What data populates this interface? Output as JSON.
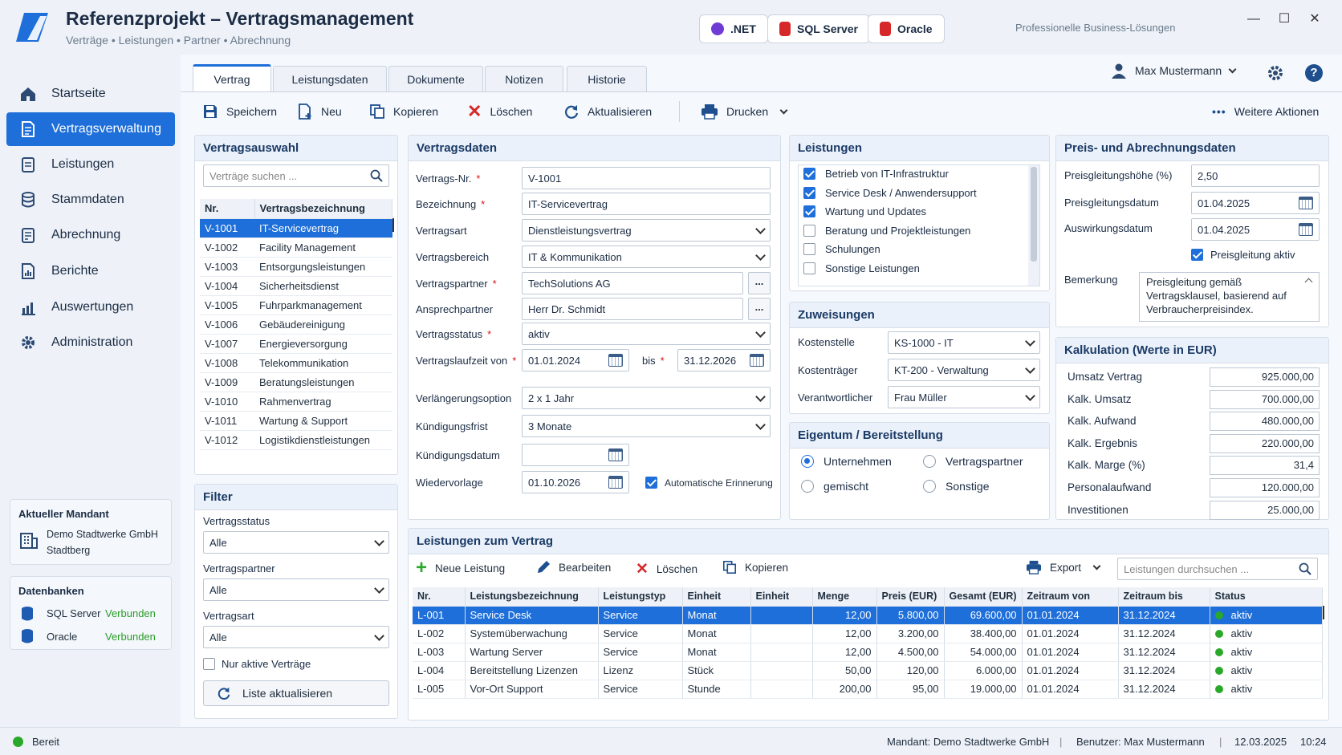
{
  "app": {
    "title": "Referenzprojekt – Vertragsmanagement",
    "subtitle": "Verträge • Leistungen • Partner • Abrechnung",
    "badges": [
      ".NET",
      "SQL Server",
      "Oracle"
    ],
    "tagline": "Professionelle Business-Lösungen",
    "accent": "#1e6fd9"
  },
  "nav": [
    "Startseite",
    "Vertragsverwaltung",
    "Leistungen",
    "Stammdaten",
    "Abrechnung",
    "Berichte",
    "Auswertungen",
    "Administration"
  ],
  "mandant": {
    "heading": "Aktueller Mandant",
    "line1": "Demo Stadtwerke GmbH",
    "line2": "Stadtberg"
  },
  "databases": {
    "heading": "Datenbanken",
    "items": [
      {
        "name": "SQL Server",
        "status": "Verbunden"
      },
      {
        "name": "Oracle",
        "status": "Verbunden"
      }
    ]
  },
  "tabs": [
    "Vertrag",
    "Leistungsdaten",
    "Dokumente",
    "Notizen",
    "Historie"
  ],
  "user": "Max Mustermann",
  "toolbar": {
    "save": "Speichern",
    "new": "Neu",
    "copy": "Kopieren",
    "delete": "Löschen",
    "refresh": "Aktualisieren",
    "print": "Drucken",
    "more": "Weitere Aktionen"
  },
  "vertragsauswahl": {
    "heading": "Vertragsauswahl",
    "search_placeholder": "Verträge suchen ...",
    "col_nr": "Nr.",
    "col_name": "Vertragsbezeichnung",
    "rows": [
      [
        "V-1001",
        "IT-Servicevertrag"
      ],
      [
        "V-1002",
        "Facility Management"
      ],
      [
        "V-1003",
        "Entsorgungsleistungen"
      ],
      [
        "V-1004",
        "Sicherheitsdienst"
      ],
      [
        "V-1005",
        "Fuhrparkmanagement"
      ],
      [
        "V-1006",
        "Gebäudereinigung"
      ],
      [
        "V-1007",
        "Energieversorgung"
      ],
      [
        "V-1008",
        "Telekommunikation"
      ],
      [
        "V-1009",
        "Beratungsleistungen"
      ],
      [
        "V-1010",
        "Rahmenvertrag"
      ],
      [
        "V-1011",
        "Wartung & Support"
      ],
      [
        "V-1012",
        "Logistikdienstleistungen"
      ]
    ]
  },
  "filter": {
    "heading": "Filter",
    "status_label": "Vertragsstatus",
    "status_value": "Alle",
    "partner_label": "Vertragspartner",
    "partner_value": "Alle",
    "art_label": "Vertragsart",
    "art_value": "Alle",
    "only_active": "Nur aktive Verträge",
    "refresh_button": "Liste aktualisieren"
  },
  "vertragsdaten": {
    "heading": "Vertragsdaten",
    "nr_label": "Vertrags-Nr.",
    "nr": "V-1001",
    "bez_label": "Bezeichnung",
    "bez": "IT-Servicevertrag",
    "art_label": "Vertragsart",
    "art": "Dienstleistungsvertrag",
    "bereich_label": "Vertragsbereich",
    "bereich": "IT & Kommunikation",
    "partner_label": "Vertragspartner",
    "partner": "TechSolutions AG",
    "ansprech_label": "Ansprechpartner",
    "ansprech": "Herr Dr. Schmidt",
    "status_label": "Vertragsstatus",
    "status": "aktiv",
    "laufzeit_label": "Vertragslaufzeit von",
    "von": "01.01.2024",
    "bis_label": "bis",
    "bis": "31.12.2026",
    "verl_label": "Verlängerungsoption",
    "verl": "2 x 1 Jahr",
    "kfrist_label": "Kündigungsfrist",
    "kfrist": "3 Monate",
    "kdatum_label": "Kündigungsdatum",
    "kdatum": "",
    "wv_label": "Wiedervorlage",
    "wv": "01.10.2026",
    "erinnerung": "Automatische Erinnerung"
  },
  "leistungen": {
    "heading": "Leistungen",
    "items": [
      {
        "label": "Betrieb von IT-Infrastruktur",
        "checked": true
      },
      {
        "label": "Service Desk / Anwendersupport",
        "checked": true
      },
      {
        "label": "Wartung und Updates",
        "checked": true
      },
      {
        "label": "Beratung und Projektleistungen",
        "checked": false
      },
      {
        "label": "Schulungen",
        "checked": false
      },
      {
        "label": "Sonstige Leistungen",
        "checked": false
      }
    ]
  },
  "zuweisungen": {
    "heading": "Zuweisungen",
    "ks_label": "Kostenstelle",
    "ks": "KS-1000 - IT",
    "kt_label": "Kostenträger",
    "kt": "KT-200 - Verwaltung",
    "ver_label": "Verantwortlicher",
    "ver": "Frau Müller"
  },
  "eigentum": {
    "heading": "Eigentum / Bereitstellung",
    "options": [
      "Unternehmen",
      "Vertragspartner",
      "gemischt",
      "Sonstige"
    ],
    "selected": "Unternehmen"
  },
  "preis": {
    "heading": "Preis- und Abrechnungsdaten",
    "hoehe_label": "Preisgleitungshöhe (%)",
    "hoehe": "2,50",
    "datum_label": "Preisgleitungsdatum",
    "datum": "01.04.2025",
    "auswirkung_label": "Auswirkungsdatum",
    "auswirkung": "01.04.2025",
    "aktiv_label": "Preisgleitung aktiv",
    "bemerkung_label": "Bemerkung",
    "bemerkung": "Preisgleitung gemäß Vertragsklausel, basierend auf Verbraucherpreisindex."
  },
  "kalkulation": {
    "heading": "Kalkulation (Werte in EUR)",
    "rows": [
      [
        "Umsatz Vertrag",
        "925.000,00"
      ],
      [
        "Kalk. Umsatz",
        "700.000,00"
      ],
      [
        "Kalk. Aufwand",
        "480.000,00"
      ],
      [
        "Kalk. Ergebnis",
        "220.000,00"
      ],
      [
        "Kalk. Marge (%)",
        "31,4"
      ],
      [
        "Personalaufwand",
        "120.000,00"
      ],
      [
        "Investitionen",
        "25.000,00"
      ]
    ]
  },
  "lzv": {
    "heading": "Leistungen zum Vertrag",
    "new": "Neue Leistung",
    "edit": "Bearbeiten",
    "delete": "Löschen",
    "copy": "Kopieren",
    "export": "Export",
    "search_placeholder": "Leistungen durchsuchen ...",
    "columns": [
      "Nr.",
      "Leistungsbezeichnung",
      "Leistungstyp",
      "Einheit",
      "Einheit",
      "Menge",
      "Preis (EUR)",
      "Gesamt (EUR)",
      "Zeitraum von",
      "Zeitraum bis",
      "Status"
    ],
    "rows": [
      [
        "L-001",
        "Service Desk",
        "Service",
        "Monat",
        "",
        "12,00",
        "5.800,00",
        "69.600,00",
        "01.01.2024",
        "31.12.2024",
        "aktiv"
      ],
      [
        "L-002",
        "Systemüberwachung",
        "Service",
        "Monat",
        "",
        "12,00",
        "3.200,00",
        "38.400,00",
        "01.01.2024",
        "31.12.2024",
        "aktiv"
      ],
      [
        "L-003",
        "Wartung Server",
        "Service",
        "Monat",
        "",
        "12,00",
        "4.500,00",
        "54.000,00",
        "01.01.2024",
        "31.12.2024",
        "aktiv"
      ],
      [
        "L-004",
        "Bereitstellung Lizenzen",
        "Lizenz",
        "Stück",
        "",
        "50,00",
        "120,00",
        "6.000,00",
        "01.01.2024",
        "31.12.2024",
        "aktiv"
      ],
      [
        "L-005",
        "Vor-Ort Support",
        "Service",
        "Stunde",
        "",
        "200,00",
        "95,00",
        "19.000,00",
        "01.01.2024",
        "31.12.2024",
        "aktiv"
      ]
    ]
  },
  "status": {
    "ready": "Bereit",
    "mandant": "Mandant: Demo Stadtwerke GmbH",
    "user": "Benutzer: Max Mustermann",
    "date": "12.03.2025",
    "time": "10:24"
  }
}
